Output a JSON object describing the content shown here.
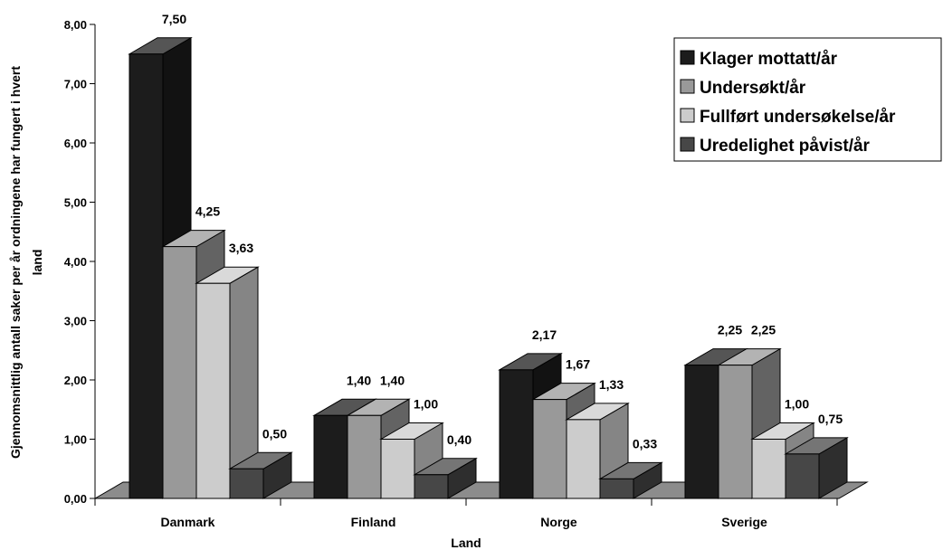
{
  "chart_data": {
    "type": "bar",
    "categories": [
      "Danmark",
      "Finland",
      "Norge",
      "Sverige"
    ],
    "series": [
      {
        "name": "Klager mottatt/år",
        "color": "#1c1c1c",
        "values": [
          7.5,
          1.4,
          2.17,
          2.25
        ],
        "labels": [
          "7,50",
          "1,40",
          "2,17",
          "2,25"
        ]
      },
      {
        "name": "Undersøkt/år",
        "color": "#999999",
        "values": [
          4.25,
          1.4,
          1.67,
          2.25
        ],
        "labels": [
          "4,25",
          "1,40",
          "1,67",
          "2,25"
        ]
      },
      {
        "name": "Fullført undersøkelse/år",
        "color": "#cccccc",
        "values": [
          3.63,
          1.0,
          1.33,
          1.0
        ],
        "labels": [
          "3,63",
          "1,00",
          "1,33",
          "1,00"
        ]
      },
      {
        "name": "Uredelighet påvist/år",
        "color": "#474747",
        "values": [
          0.5,
          0.4,
          0.33,
          0.75
        ],
        "labels": [
          "0,50",
          "0,40",
          "0,33",
          "0,75"
        ]
      }
    ],
    "ylim": [
      0,
      8
    ],
    "yticks": [
      "0,00",
      "1,00",
      "2,00",
      "3,00",
      "4,00",
      "5,00",
      "6,00",
      "7,00",
      "8,00"
    ],
    "xlabel": "Land",
    "ylabel_lines": [
      "Gjennomsnittlig antall saker per år ordningene har fungert i hvert",
      "land"
    ],
    "legend_position": "top-right",
    "floor_color": "#8c8c8c",
    "grid": false
  }
}
